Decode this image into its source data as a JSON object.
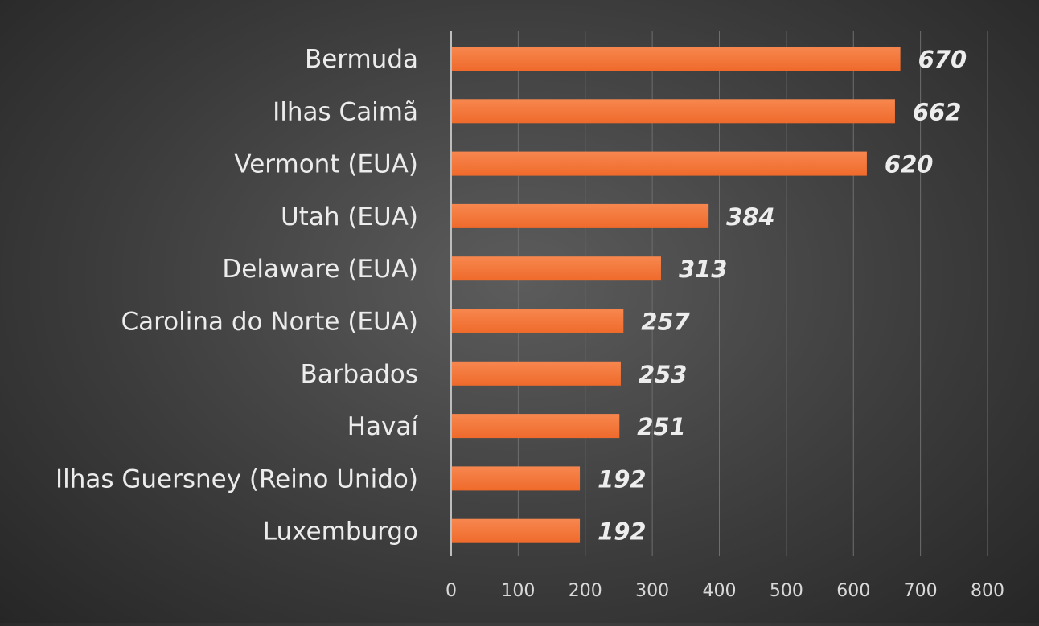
{
  "colors": {
    "bar": "#ef6a2b",
    "bar_highlight": "#f7874f",
    "text": "#ececec",
    "grid": "#6e6e6e"
  },
  "chart_data": {
    "type": "bar",
    "orientation": "horizontal",
    "categories": [
      "Bermuda",
      "Ilhas Caimã",
      "Vermont (EUA)",
      "Utah (EUA)",
      "Delaware (EUA)",
      "Carolina do Norte (EUA)",
      "Barbados",
      "Havaí",
      "Ilhas Guersney (Reino Unido)",
      "Luxemburgo"
    ],
    "values": [
      670,
      662,
      620,
      384,
      313,
      257,
      253,
      251,
      192,
      192
    ],
    "data_labels": [
      "670",
      "662",
      "620",
      "384",
      "313",
      "257",
      "253",
      "251",
      "192",
      "192"
    ],
    "title": "",
    "xlabel": "",
    "ylabel": "",
    "xlim": [
      0,
      800
    ],
    "ticks": [
      0,
      100,
      200,
      300,
      400,
      500,
      600,
      700,
      800
    ],
    "tick_labels": [
      "0",
      "100",
      "200",
      "300",
      "400",
      "500",
      "600",
      "700",
      "800"
    ],
    "grid": true,
    "legend": "none"
  }
}
